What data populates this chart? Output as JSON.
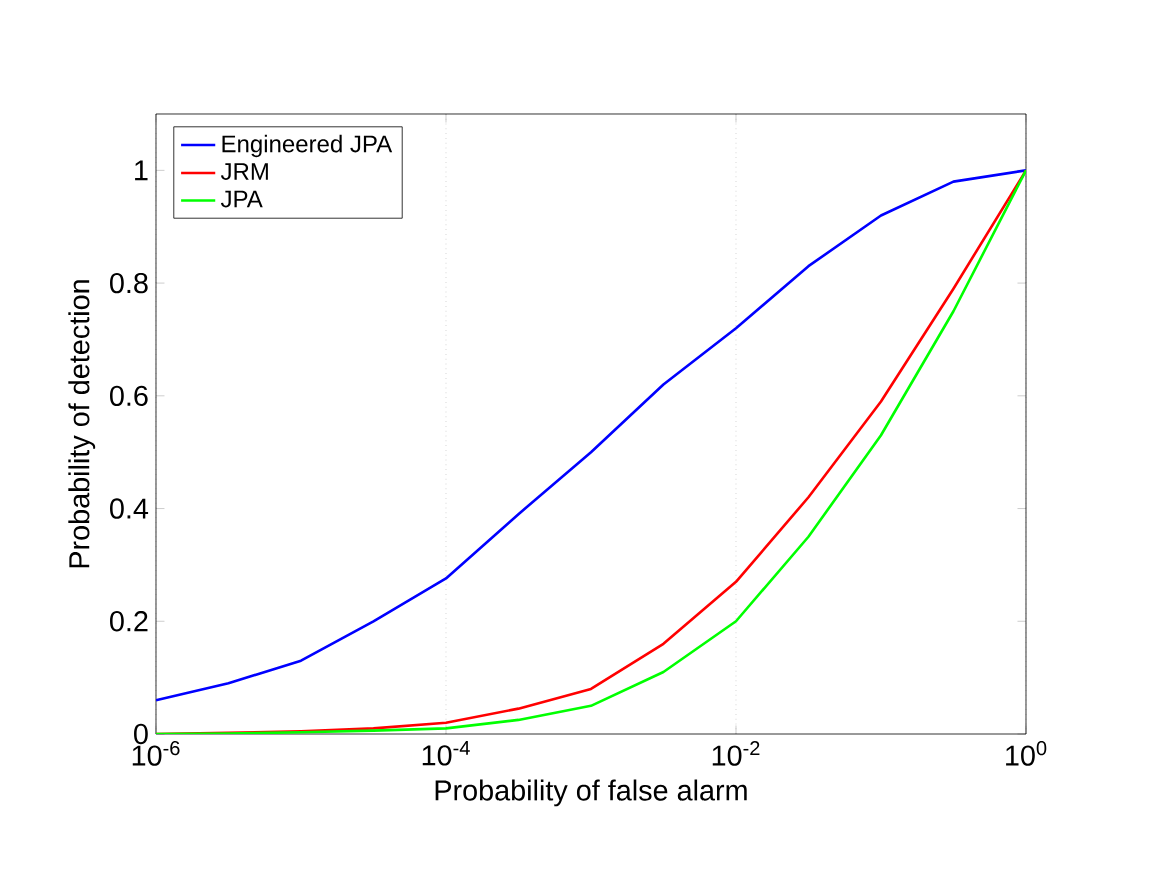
{
  "chart_data": {
    "type": "line",
    "xlabel": "Probability of false alarm",
    "ylabel": "Probability of detection",
    "x": [
      1e-06,
      3.16e-06,
      1e-05,
      3.16e-05,
      0.0001,
      0.000316,
      0.001,
      0.00316,
      0.01,
      0.0316,
      0.1,
      0.316,
      1
    ],
    "series": [
      {
        "name": "Engineered JPA",
        "color": "#0000ff",
        "values": [
          0.06,
          0.09,
          0.13,
          0.2,
          0.276,
          0.39,
          0.5,
          0.62,
          0.72,
          0.83,
          0.92,
          0.98,
          1.0
        ]
      },
      {
        "name": "JRM",
        "color": "#ff0000",
        "values": [
          0.0,
          0.002,
          0.005,
          0.01,
          0.02,
          0.045,
          0.08,
          0.16,
          0.27,
          0.42,
          0.59,
          0.79,
          1.0
        ]
      },
      {
        "name": "JPA",
        "color": "#00ff00",
        "values": [
          0.0,
          0.001,
          0.003,
          0.006,
          0.01,
          0.025,
          0.05,
          0.11,
          0.2,
          0.35,
          0.53,
          0.75,
          1.0
        ]
      }
    ],
    "log": "x",
    "xlim": [
      1e-06,
      1
    ],
    "ylim": [
      0,
      1.1
    ],
    "xticks": [
      {
        "value": 1e-06,
        "label": "10$^{-6}$"
      },
      {
        "value": 0.0001,
        "label": "10$^{-4}$"
      },
      {
        "value": 0.01,
        "label": "10$^{-2}$"
      },
      {
        "value": 1,
        "label": "10$^{0}$"
      }
    ],
    "yticks": [
      0,
      0.2,
      0.4,
      0.6,
      0.8,
      1
    ],
    "grid": "x",
    "legend": "top left",
    "marker": "none",
    "line_style": "solid"
  }
}
